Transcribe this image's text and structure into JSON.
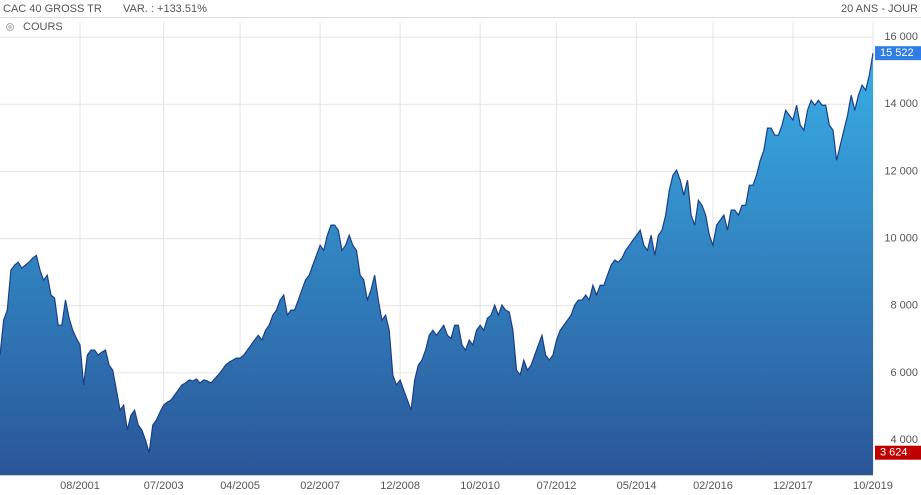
{
  "chart_data": {
    "type": "area",
    "title": "CAC 40 GROSS TR",
    "variation": "VAR. : +133.51%",
    "period": "20 ANS - JOUR",
    "series_label": "COURS",
    "x": [
      "10/1999",
      "11/1999",
      "12/1999",
      "01/2000",
      "02/2000",
      "03/2000",
      "04/2000",
      "05/2000",
      "06/2000",
      "07/2000",
      "08/2000",
      "09/2000",
      "10/2000",
      "11/2000",
      "12/2000",
      "01/2001",
      "02/2001",
      "03/2001",
      "04/2001",
      "05/2001",
      "06/2001",
      "07/2001",
      "08/2001",
      "09/2001",
      "10/2001",
      "11/2001",
      "12/2001",
      "01/2002",
      "02/2002",
      "03/2002",
      "04/2002",
      "05/2002",
      "06/2002",
      "07/2002",
      "08/2002",
      "09/2002",
      "10/2002",
      "11/2002",
      "12/2002",
      "01/2003",
      "02/2003",
      "03/2003",
      "04/2003",
      "05/2003",
      "06/2003",
      "07/2003",
      "08/2003",
      "09/2003",
      "10/2003",
      "11/2003",
      "12/2003",
      "01/2004",
      "02/2004",
      "03/2004",
      "04/2004",
      "05/2004",
      "06/2004",
      "07/2004",
      "08/2004",
      "09/2004",
      "10/2004",
      "11/2004",
      "12/2004",
      "01/2005",
      "02/2005",
      "03/2005",
      "04/2005",
      "05/2005",
      "06/2005",
      "07/2005",
      "08/2005",
      "09/2005",
      "10/2005",
      "11/2005",
      "12/2005",
      "01/2006",
      "02/2006",
      "03/2006",
      "04/2006",
      "05/2006",
      "06/2006",
      "07/2006",
      "08/2006",
      "09/2006",
      "10/2006",
      "11/2006",
      "12/2006",
      "01/2007",
      "02/2007",
      "03/2007",
      "04/2007",
      "05/2007",
      "06/2007",
      "07/2007",
      "08/2007",
      "09/2007",
      "10/2007",
      "11/2007",
      "12/2007",
      "01/2008",
      "02/2008",
      "03/2008",
      "04/2008",
      "05/2008",
      "06/2008",
      "07/2008",
      "08/2008",
      "09/2008",
      "10/2008",
      "11/2008",
      "12/2008",
      "01/2009",
      "02/2009",
      "03/2009",
      "04/2009",
      "05/2009",
      "06/2009",
      "07/2009",
      "08/2009",
      "09/2009",
      "10/2009",
      "11/2009",
      "12/2009",
      "01/2010",
      "02/2010",
      "03/2010",
      "04/2010",
      "05/2010",
      "06/2010",
      "07/2010",
      "08/2010",
      "09/2010",
      "10/2010",
      "11/2010",
      "12/2010",
      "01/2011",
      "02/2011",
      "03/2011",
      "04/2011",
      "05/2011",
      "06/2011",
      "07/2011",
      "08/2011",
      "09/2011",
      "10/2011",
      "11/2011",
      "12/2011",
      "01/2012",
      "02/2012",
      "03/2012",
      "04/2012",
      "05/2012",
      "06/2012",
      "07/2012",
      "08/2012",
      "09/2012",
      "10/2012",
      "11/2012",
      "12/2012",
      "01/2013",
      "02/2013",
      "03/2013",
      "04/2013",
      "05/2013",
      "06/2013",
      "07/2013",
      "08/2013",
      "09/2013",
      "10/2013",
      "11/2013",
      "12/2013",
      "01/2014",
      "02/2014",
      "03/2014",
      "04/2014",
      "05/2014",
      "06/2014",
      "07/2014",
      "08/2014",
      "09/2014",
      "10/2014",
      "11/2014",
      "12/2014",
      "01/2015",
      "02/2015",
      "03/2015",
      "04/2015",
      "05/2015",
      "06/2015",
      "07/2015",
      "08/2015",
      "09/2015",
      "10/2015",
      "11/2015",
      "12/2015",
      "01/2016",
      "02/2016",
      "03/2016",
      "04/2016",
      "05/2016",
      "06/2016",
      "07/2016",
      "08/2016",
      "09/2016",
      "10/2016",
      "11/2016",
      "12/2016",
      "01/2017",
      "02/2017",
      "03/2017",
      "04/2017",
      "05/2017",
      "06/2017",
      "07/2017",
      "08/2017",
      "09/2017",
      "10/2017",
      "11/2017",
      "12/2017",
      "01/2018",
      "02/2018",
      "03/2018",
      "04/2018",
      "05/2018",
      "06/2018",
      "07/2018",
      "08/2018",
      "09/2018",
      "10/2018",
      "11/2018",
      "12/2018",
      "01/2019",
      "02/2019",
      "03/2019",
      "04/2019",
      "05/2019",
      "06/2019",
      "07/2019",
      "08/2019",
      "09/2019",
      "10/2019"
    ],
    "values": [
      6530,
      7570,
      7870,
      9060,
      9210,
      9300,
      9120,
      9210,
      9300,
      9420,
      9500,
      9060,
      8760,
      8910,
      8320,
      8230,
      7420,
      7420,
      8170,
      7630,
      7270,
      7030,
      6830,
      5640,
      6530,
      6680,
      6680,
      6530,
      6620,
      6680,
      6230,
      6080,
      5490,
      4890,
      5040,
      4300,
      4740,
      4890,
      4450,
      4300,
      4000,
      3624,
      4450,
      4600,
      4830,
      5040,
      5130,
      5190,
      5340,
      5490,
      5640,
      5700,
      5790,
      5760,
      5820,
      5700,
      5790,
      5760,
      5700,
      5820,
      5940,
      6080,
      6230,
      6320,
      6380,
      6440,
      6440,
      6530,
      6680,
      6830,
      6980,
      7120,
      6980,
      7270,
      7420,
      7720,
      7870,
      8170,
      8320,
      7720,
      7870,
      7870,
      8170,
      8470,
      8770,
      8910,
      9210,
      9500,
      9800,
      9650,
      10100,
      10400,
      10400,
      10250,
      9650,
      9800,
      10100,
      9800,
      9650,
      8910,
      8770,
      8170,
      8470,
      8910,
      8170,
      7570,
      7720,
      7270,
      5930,
      5640,
      5790,
      5490,
      5190,
      4890,
      5790,
      6230,
      6380,
      6680,
      7120,
      7270,
      7120,
      7270,
      7420,
      7120,
      7030,
      7420,
      7420,
      6830,
      6680,
      6980,
      6830,
      7270,
      7420,
      7270,
      7630,
      7720,
      8020,
      7720,
      8020,
      7870,
      7810,
      7270,
      6080,
      5940,
      6380,
      6080,
      6230,
      6530,
      6830,
      7120,
      6530,
      6380,
      6530,
      6980,
      7270,
      7420,
      7570,
      7720,
      8020,
      8170,
      8170,
      8320,
      8170,
      8610,
      8320,
      8610,
      8610,
      8910,
      9210,
      9360,
      9300,
      9420,
      9650,
      9800,
      9950,
      10100,
      10250,
      9800,
      9650,
      10100,
      9500,
      10100,
      10250,
      10700,
      11440,
      11890,
      12040,
      11740,
      11290,
      11740,
      10700,
      10400,
      11140,
      10990,
      10700,
      10100,
      9800,
      10400,
      10550,
      10700,
      10250,
      10850,
      10850,
      10700,
      10990,
      10990,
      11590,
      11590,
      11890,
      12330,
      12630,
      13290,
      13290,
      13080,
      13080,
      13380,
      13820,
      13670,
      13530,
      13970,
      13380,
      13230,
      13820,
      14120,
      13970,
      14120,
      13970,
      13970,
      13380,
      13230,
      12330,
      12780,
      13230,
      13670,
      14270,
      13820,
      14270,
      14570,
      14420,
      14870,
      15522
    ],
    "color": "#1c3f86",
    "fill_top": "#38aee6",
    "fill_bottom": "#2a5699",
    "ylim": [
      2960,
      16450
    ],
    "yticks": [
      {
        "value": 4000,
        "label": "4 000"
      },
      {
        "value": 6000,
        "label": "6 000"
      },
      {
        "value": 8000,
        "label": "8 000"
      },
      {
        "value": 10000,
        "label": "10 000"
      },
      {
        "value": 12000,
        "label": "12 000"
      },
      {
        "value": 14000,
        "label": "14 000"
      },
      {
        "value": 16000,
        "label": "16 000"
      }
    ],
    "xticks": [
      "08/2001",
      "07/2003",
      "04/2005",
      "02/2007",
      "12/2008",
      "10/2010",
      "07/2012",
      "05/2014",
      "02/2016",
      "12/2017",
      "10/2019"
    ],
    "grid": true,
    "badges": [
      {
        "value": 15522,
        "label": "15 522",
        "color": "#2f7ee8"
      },
      {
        "value": 3624,
        "label": "3 624",
        "color": "#c00000"
      }
    ]
  }
}
